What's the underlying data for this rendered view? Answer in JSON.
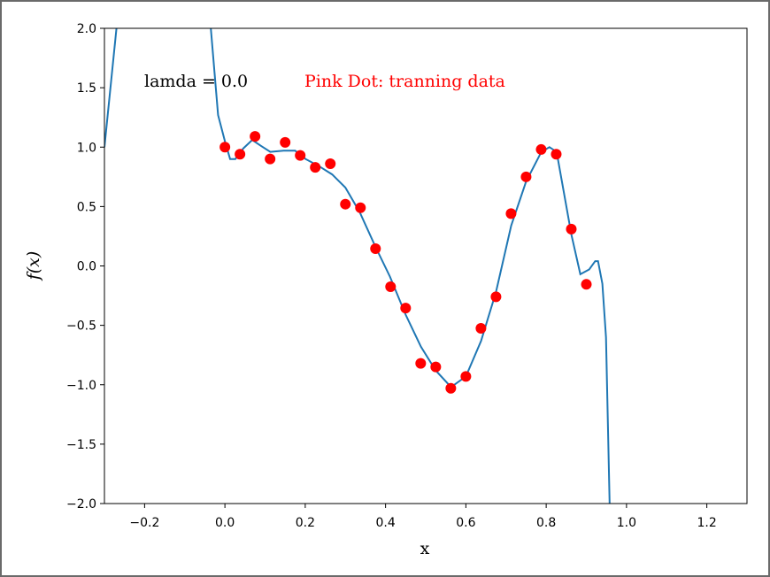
{
  "chart_data": {
    "type": "line",
    "xlabel": "x",
    "ylabel": "f(x)",
    "xlim": [
      -0.3,
      1.3
    ],
    "ylim": [
      -2.0,
      2.0
    ],
    "xticks": [
      {
        "value": -0.2,
        "label": "−0.2"
      },
      {
        "value": 0,
        "label": "0.0"
      },
      {
        "value": 0.2,
        "label": "0.2"
      },
      {
        "value": 0.4,
        "label": "0.4"
      },
      {
        "value": 0.6,
        "label": "0.6"
      },
      {
        "value": 0.8,
        "label": "0.8"
      },
      {
        "value": 1,
        "label": "1.0"
      },
      {
        "value": 1.2,
        "label": "1.2"
      }
    ],
    "yticks": [
      {
        "value": -2,
        "label": "−2.0"
      },
      {
        "value": -1.5,
        "label": "−1.5"
      },
      {
        "value": -1,
        "label": "−1.0"
      },
      {
        "value": -0.5,
        "label": "−0.5"
      },
      {
        "value": 0,
        "label": "0.0"
      },
      {
        "value": 0.5,
        "label": "0.5"
      },
      {
        "value": 1,
        "label": "1.0"
      },
      {
        "value": 1.5,
        "label": "1.5"
      },
      {
        "value": 2,
        "label": "2.0"
      }
    ],
    "annotations": [
      {
        "text": "lamda = 0.0",
        "color": "#000000"
      },
      {
        "text": "Pink Dot: tranning data",
        "color": "#ff0000"
      }
    ],
    "series": [
      {
        "type": "line",
        "color": "#1f77b4",
        "x": [
          -0.3,
          -0.27,
          -0.25,
          -0.04,
          -0.035,
          -0.017,
          0.0,
          0.013,
          0.026,
          0.046,
          0.068,
          0.09,
          0.113,
          0.146,
          0.175,
          0.201,
          0.234,
          0.267,
          0.3,
          0.336,
          0.375,
          0.411,
          0.45,
          0.488,
          0.525,
          0.563,
          0.6,
          0.638,
          0.675,
          0.713,
          0.75,
          0.788,
          0.808,
          0.826,
          0.863,
          0.885,
          0.907,
          0.922,
          0.929,
          0.94,
          0.949,
          0.958,
          0.962
        ],
        "y": [
          1.0,
          2.0,
          2.4,
          2.4,
          2.0,
          1.27,
          1.05,
          0.9,
          0.9,
          0.99,
          1.06,
          1.01,
          0.96,
          0.97,
          0.97,
          0.9,
          0.84,
          0.77,
          0.66,
          0.45,
          0.16,
          -0.09,
          -0.41,
          -0.68,
          -0.88,
          -1.02,
          -0.93,
          -0.63,
          -0.22,
          0.34,
          0.71,
          0.96,
          1.0,
          0.96,
          0.26,
          -0.07,
          -0.03,
          0.04,
          0.04,
          -0.15,
          -0.6,
          -2.0,
          -2.4
        ]
      },
      {
        "type": "scatter",
        "color": "#ff0000",
        "x": [
          0.0,
          0.0375,
          0.075,
          0.1125,
          0.15,
          0.1875,
          0.225,
          0.2625,
          0.3,
          0.3375,
          0.375,
          0.4125,
          0.45,
          0.4875,
          0.525,
          0.5625,
          0.6,
          0.6375,
          0.675,
          0.7125,
          0.75,
          0.7875,
          0.825,
          0.8625,
          0.9
        ],
        "y": [
          1.0,
          0.94,
          1.09,
          0.9,
          1.04,
          0.93,
          0.83,
          0.86,
          0.52,
          0.49,
          0.145,
          -0.175,
          -0.355,
          -0.82,
          -0.85,
          -1.03,
          -0.93,
          -0.525,
          -0.26,
          0.44,
          0.75,
          0.98,
          0.94,
          0.31,
          -0.155
        ]
      }
    ]
  }
}
